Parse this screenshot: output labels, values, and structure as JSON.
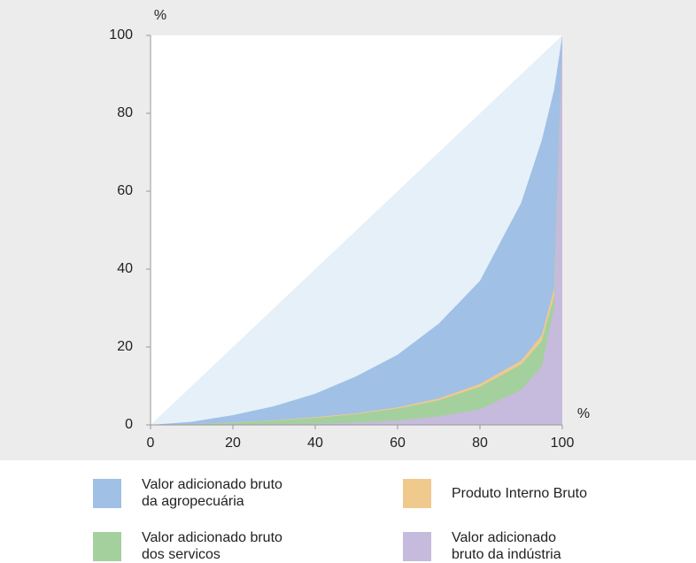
{
  "chart_data": {
    "type": "area",
    "y_label": "%",
    "x_label": "%",
    "x": [
      0,
      10,
      20,
      30,
      40,
      50,
      60,
      70,
      80,
      90,
      95,
      98,
      100
    ],
    "series": [
      {
        "name": "Valor adicionado bruto da agropecuária",
        "color": "#a0c0e6",
        "values": [
          0,
          0.8,
          2.5,
          4.8,
          8,
          12.5,
          18,
          26,
          37,
          57,
          73,
          86,
          100
        ]
      },
      {
        "name": "Produto Interno Bruto",
        "color": "#f0c98d",
        "values": [
          0,
          0.2,
          0.6,
          1.2,
          2,
          3,
          4.5,
          6.8,
          10.5,
          16.5,
          23,
          35,
          100
        ]
      },
      {
        "name": "Valor adicionado bruto dos servicos",
        "color": "#a4d09e",
        "values": [
          0,
          0.2,
          0.5,
          1.1,
          1.8,
          2.8,
          4.2,
          6.3,
          9.8,
          15.5,
          21.5,
          33,
          100
        ]
      },
      {
        "name": "Valor adicionado bruto da indústria",
        "color": "#c6badd",
        "values": [
          0,
          0,
          0.1,
          0.2,
          0.3,
          0.6,
          1.1,
          2.2,
          4,
          9,
          15,
          30,
          100
        ]
      }
    ],
    "equality_color": "#e6f0f9",
    "xlim": [
      0,
      100
    ],
    "ylim": [
      0,
      100
    ],
    "xticks": [
      0,
      20,
      40,
      60,
      80,
      100
    ],
    "yticks": [
      0,
      20,
      40,
      60,
      80,
      100
    ]
  }
}
